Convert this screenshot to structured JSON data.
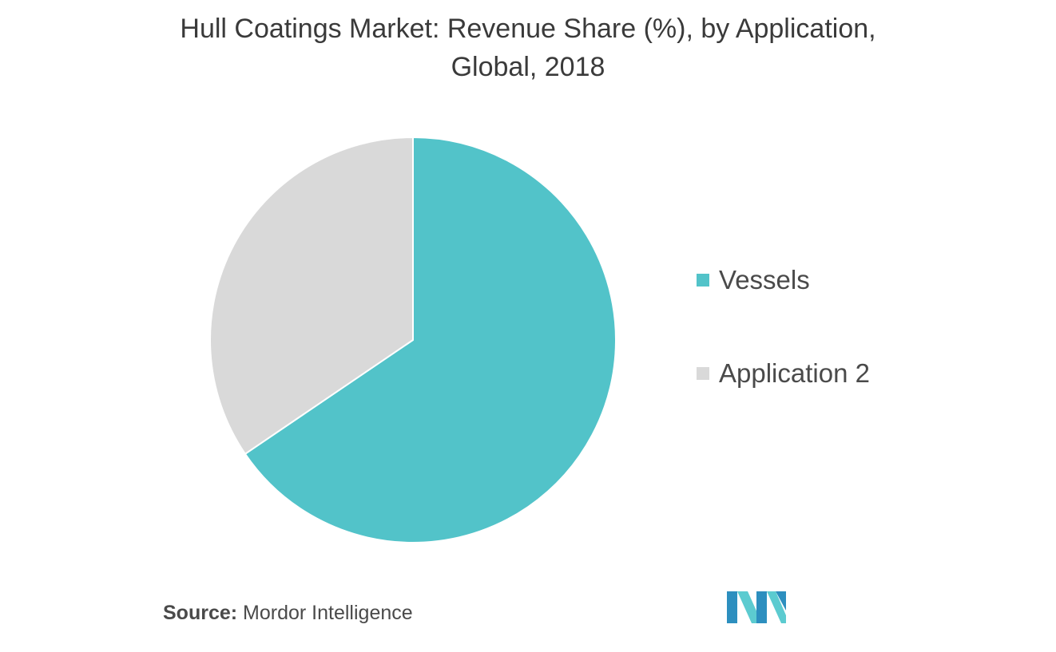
{
  "title": {
    "line1": "Hull Coatings Market: Revenue Share (%), by Application,",
    "line2": "Global, 2018"
  },
  "chart_data": {
    "type": "pie",
    "title": "Hull Coatings Market: Revenue Share (%), by Application, Global, 2018",
    "start_angle_deg": 0,
    "direction": "clockwise",
    "legend_position": "right",
    "series": [
      {
        "name": "Vessels",
        "value": 65.5,
        "color": "#52c3c9"
      },
      {
        "name": "Application 2",
        "value": 34.5,
        "color": "#d9d9d9"
      }
    ]
  },
  "source": {
    "label": "Source:",
    "text": "Mordor Intelligence"
  },
  "logo": {
    "icon": "mordor-intelligence-logo",
    "colors": [
      "#2d8fbf",
      "#5ccbd0"
    ]
  }
}
